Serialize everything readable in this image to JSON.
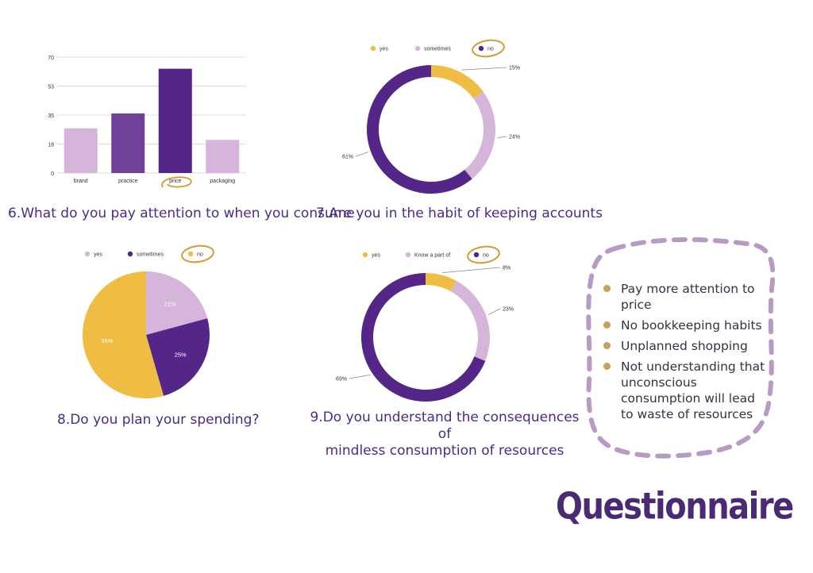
{
  "colors": {
    "purple_dark": "#532688",
    "purple_mid": "#6e4299",
    "lilac": "#d5b5d9",
    "yellow": "#f0bd44",
    "annotation_gold": "#d49a3a",
    "dash_lilac": "#b79bc2"
  },
  "chart_data": [
    {
      "type": "bar",
      "categories": [
        "brand",
        "practice",
        "price",
        "packaging"
      ],
      "values": [
        27,
        36,
        63,
        20
      ],
      "colors": [
        "#d5b5d9",
        "#6e4299",
        "#532688",
        "#d5b5d9"
      ],
      "ylim": [
        0,
        70
      ],
      "yticks": [
        "0",
        "18",
        "35",
        "53",
        "70"
      ],
      "grid": true,
      "title": "6.What do you pay attention to when you consume",
      "highlighted": "price"
    },
    {
      "type": "donut",
      "legend": [
        "yes",
        "sometimes",
        "no"
      ],
      "values": [
        15,
        24,
        61
      ],
      "labels": [
        "15%",
        "24%",
        "61%"
      ],
      "colors": [
        "#f0bd44",
        "#d5b5d9",
        "#532688"
      ],
      "title": "7.Are you in the habit of keeping accounts",
      "highlighted": "no"
    },
    {
      "type": "pie",
      "legend": [
        "yes",
        "sometimes",
        "no"
      ],
      "values": [
        21,
        25,
        55
      ],
      "labels": [
        "21%",
        "25%",
        "55%"
      ],
      "colors": [
        "#d5b5d9",
        "#532688",
        "#f0bd44"
      ],
      "title": "8.Do you plan your spending?",
      "highlighted": "no"
    },
    {
      "type": "donut",
      "legend": [
        "yes",
        "Know a part of",
        "no"
      ],
      "values": [
        8,
        23,
        69
      ],
      "labels": [
        "8%",
        "23%",
        "69%"
      ],
      "colors": [
        "#f0bd44",
        "#d5b5d9",
        "#532688"
      ],
      "title_lines": [
        "9.Do you understand the consequences of",
        "mindless consumption of resources"
      ],
      "highlighted": "no"
    }
  ],
  "summary": {
    "items": [
      "Pay more attention to price",
      "No bookkeeping habits",
      "Unplanned shopping",
      "Not understanding that unconscious consumption will lead to waste of resources"
    ]
  },
  "page_title": "Questionnaire"
}
